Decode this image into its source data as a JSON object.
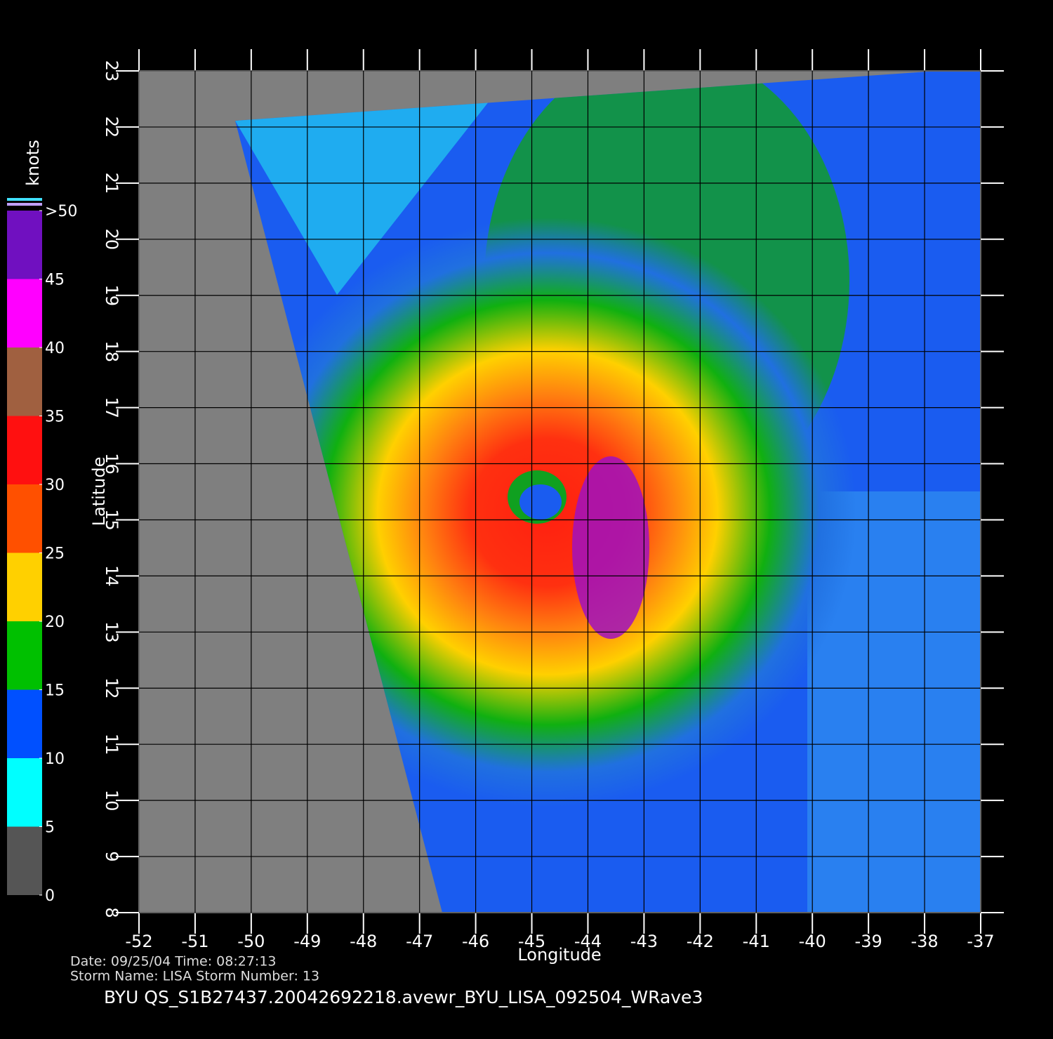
{
  "map": {
    "xlabel": "Longitude",
    "ylabel": "Latitude",
    "xlim": [
      -52,
      -37
    ],
    "ylim": [
      8,
      23
    ],
    "xticks": [
      -52,
      -51,
      -50,
      -49,
      -48,
      -47,
      -46,
      -45,
      -44,
      -43,
      -42,
      -41,
      -40,
      -39,
      -38,
      -37
    ],
    "yticks": [
      8,
      9,
      10,
      11,
      12,
      13,
      14,
      15,
      16,
      17,
      18,
      19,
      20,
      21,
      22,
      23
    ],
    "colorbar": {
      "title": "knots",
      "range": [
        0,
        50
      ],
      "ticks": [
        0,
        5,
        10,
        15,
        20,
        25,
        30,
        35,
        40,
        {
          "value": 50,
          "label": ">50"
        },
        45
      ],
      "colors": [
        "#555555",
        "#00ffff",
        "#0050ff",
        "#00c000",
        "#ffd000",
        "#ff5000",
        "#ff1010",
        "#a06040",
        "#ff00ff",
        "#7010c0"
      ]
    },
    "info": {
      "line1": "Date: 09/25/04   Time: 08:27:13",
      "line2": "Storm  Name: LISA   Storm  Number: 13",
      "file": "BYU  QS_S1B27437.20042692218.avewr_BYU_LISA_092504_WRave3"
    }
  }
}
